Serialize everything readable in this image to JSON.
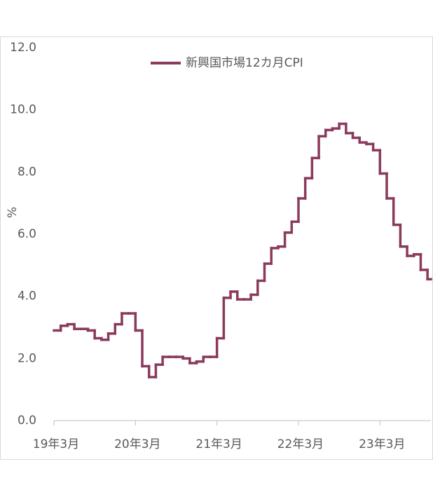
{
  "chart_data": {
    "type": "step",
    "y_label": "%",
    "categories": [
      "19年3月",
      null,
      null,
      null,
      null,
      null,
      null,
      null,
      null,
      null,
      null,
      null,
      "20年3月",
      null,
      null,
      null,
      null,
      null,
      null,
      null,
      null,
      null,
      null,
      null,
      "21年3月",
      null,
      null,
      null,
      null,
      null,
      null,
      null,
      null,
      null,
      null,
      null,
      "22年3月",
      null,
      null,
      null,
      null,
      null,
      null,
      null,
      null,
      null,
      null,
      null,
      "23年3月",
      null,
      null,
      null,
      null,
      null,
      null,
      null
    ],
    "series": [
      {
        "name": "新興国市場12カ月CPI",
        "color": "#8a3a5c",
        "values": [
          2.9,
          3.05,
          3.1,
          2.95,
          2.95,
          2.9,
          2.65,
          2.6,
          2.8,
          3.1,
          3.45,
          3.45,
          2.9,
          1.75,
          1.4,
          1.8,
          2.05,
          2.05,
          2.05,
          2.0,
          1.85,
          1.9,
          2.05,
          2.05,
          2.65,
          3.95,
          4.15,
          3.9,
          3.9,
          4.05,
          4.5,
          5.05,
          5.55,
          5.6,
          6.05,
          6.4,
          7.15,
          7.8,
          8.45,
          9.15,
          9.35,
          9.4,
          9.55,
          9.25,
          9.1,
          8.95,
          8.9,
          8.7,
          7.95,
          7.15,
          6.3,
          5.6,
          5.3,
          5.35,
          4.85,
          4.55
        ]
      }
    ],
    "ylim": [
      0,
      12
    ],
    "yticks": [
      {
        "value": 0,
        "label": "0.0"
      },
      {
        "value": 2,
        "label": "2.0"
      },
      {
        "value": 4,
        "label": "4.0"
      },
      {
        "value": 6,
        "label": "6.0"
      },
      {
        "value": 8,
        "label": "8.0"
      },
      {
        "value": 10,
        "label": "10.0"
      },
      {
        "value": 12,
        "label": "12.0"
      }
    ],
    "legend": "top-right"
  }
}
